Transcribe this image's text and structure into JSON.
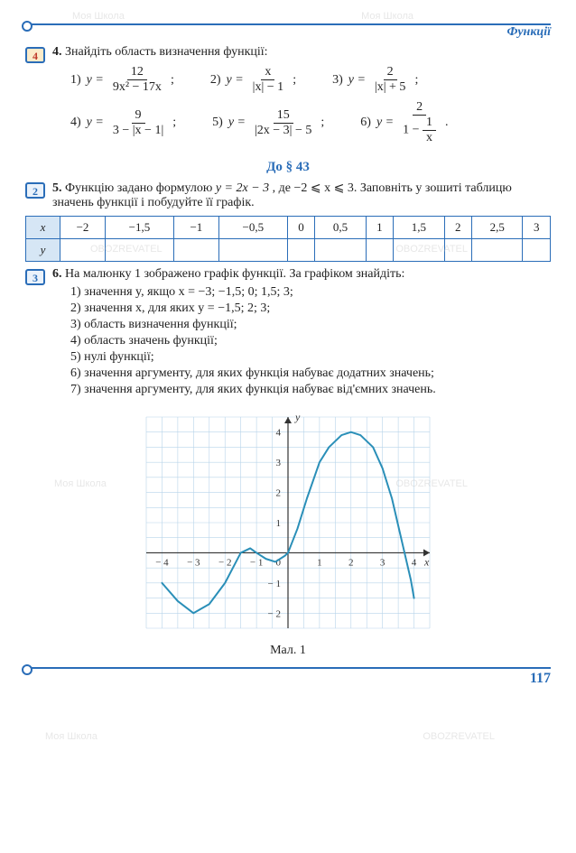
{
  "header": {
    "section_label": "Функції"
  },
  "watermarks": {
    "brand1": "Моя Школа",
    "brand2": "OBOZREVATEL"
  },
  "task4": {
    "tag": "4",
    "number": "4.",
    "text": "Знайдіть область визначення функції:",
    "items": [
      {
        "label": "1)",
        "lhs": "y =",
        "num": "12",
        "den": "9x² − 17x",
        "tail": ";"
      },
      {
        "label": "2)",
        "lhs": "y =",
        "num": "x",
        "den": "|x| − 1",
        "tail": ";"
      },
      {
        "label": "3)",
        "lhs": "y =",
        "num": "2",
        "den": "|x| + 5",
        "tail": ";"
      },
      {
        "label": "4)",
        "lhs": "y =",
        "num": "9",
        "den": "3 − |x − 1|",
        "tail": ";"
      },
      {
        "label": "5)",
        "lhs": "y =",
        "num": "15",
        "den": "|2x − 3| − 5",
        "tail": ";"
      },
      {
        "label": "6)",
        "lhs": "y =",
        "num": "2",
        "den_frac": {
          "pre": "1 − ",
          "num": "1",
          "den": "x"
        },
        "tail": "."
      }
    ]
  },
  "section43": {
    "title": "До § 43"
  },
  "task5": {
    "tag": "2",
    "number": "5.",
    "text_a": "Функцію задано формулою ",
    "formula": "y = 2x − 3",
    "text_b": ", де −2 ⩽ x ⩽ 3. Заповніть у зошиті таблицю значень функції і побудуйте її графік.",
    "table": {
      "row_x_label": "x",
      "row_y_label": "y",
      "x_values": [
        "−2",
        "−1,5",
        "−1",
        "−0,5",
        "0",
        "0,5",
        "1",
        "1,5",
        "2",
        "2,5",
        "3"
      ],
      "y_values": [
        "",
        "",
        "",
        "",
        "",
        "",
        "",
        "",
        "",
        "",
        ""
      ]
    }
  },
  "task6": {
    "tag": "3",
    "number": "6.",
    "intro": "На малюнку 1 зображено графік функції. За графіком знайдіть:",
    "items": [
      "1) значення y, якщо x = −3; −1,5; 0; 1,5; 3;",
      "2) значення x, для яких y = −1,5; 2; 3;",
      "3) область визначення функції;",
      "4) область значень функції;",
      "5) нулі функції;",
      "6) значення аргументу, для яких функція набуває додатних значень;",
      "7) значення аргументу, для яких функція набуває від'ємних значень."
    ]
  },
  "graph": {
    "caption": "Мал. 1",
    "xlabel": "x",
    "ylabel": "y",
    "xlim": [
      -4.5,
      4.5
    ],
    "ylim": [
      -2.5,
      4.5
    ],
    "x_ticks": [
      -4,
      -3,
      -2,
      -1,
      0,
      1,
      2,
      3,
      4
    ],
    "y_ticks": [
      -2,
      -1,
      1,
      2,
      3,
      4
    ],
    "grid_minor": 0.5,
    "background_color": "#ffffff",
    "grid_color": "#b8d4ea",
    "axis_color": "#333333",
    "curve_color": "#2a8fb8",
    "curve_width": 2,
    "curve_points": [
      [
        -4,
        -1
      ],
      [
        -3.5,
        -1.6
      ],
      [
        -3,
        -2
      ],
      [
        -2.5,
        -1.7
      ],
      [
        -2,
        -1
      ],
      [
        -1.7,
        -0.4
      ],
      [
        -1.5,
        0
      ],
      [
        -1.2,
        0.15
      ],
      [
        -1,
        0
      ],
      [
        -0.7,
        -0.2
      ],
      [
        -0.4,
        -0.3
      ],
      [
        -0.1,
        -0.1
      ],
      [
        0,
        0
      ],
      [
        0.3,
        0.8
      ],
      [
        0.6,
        1.8
      ],
      [
        1,
        3
      ],
      [
        1.3,
        3.5
      ],
      [
        1.7,
        3.9
      ],
      [
        2,
        4
      ],
      [
        2.3,
        3.9
      ],
      [
        2.7,
        3.5
      ],
      [
        3,
        2.8
      ],
      [
        3.3,
        1.8
      ],
      [
        3.5,
        0.9
      ],
      [
        3.7,
        0
      ],
      [
        3.9,
        -0.9
      ],
      [
        4,
        -1.5
      ]
    ]
  },
  "footer": {
    "page_number": "117"
  }
}
